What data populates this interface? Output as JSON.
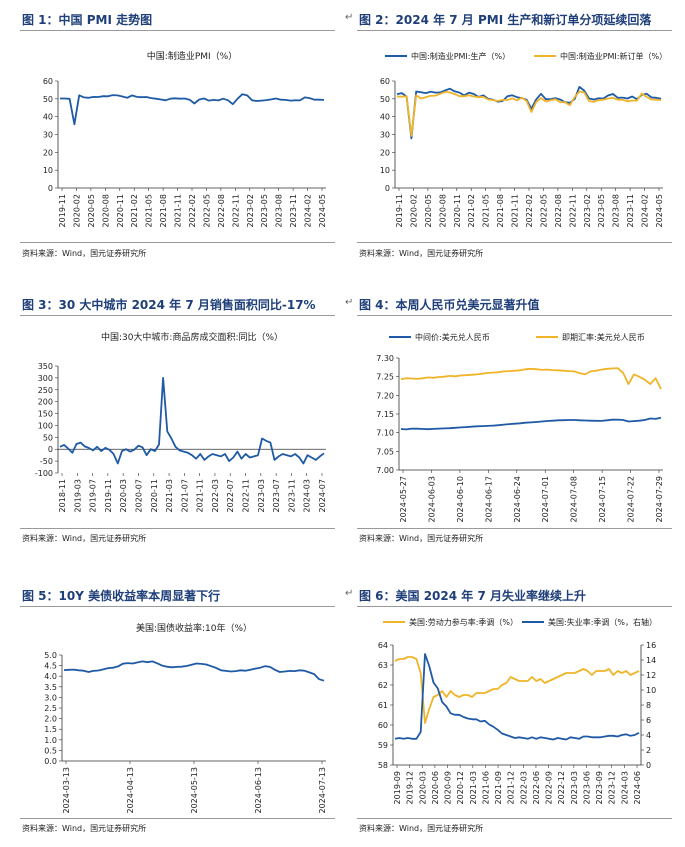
{
  "figures": [
    {
      "title": "图 1：中国 PMI 走势图",
      "source": "资料来源：Wind，国元证券研究所"
    },
    {
      "title": "图 2：2024 年 7 月 PMI 生产和新订单分项延续回落",
      "source": "资料来源：Wind，国元证券研究所"
    },
    {
      "title": "图 3：30 大中城市 2024 年 7 月销售面积同比-17%",
      "source": "资料来源：Wind，国元证券研究所"
    },
    {
      "title": "图 4：本周人民币兑美元显著升值",
      "source": "资料来源：Wind，国元证券研究所"
    },
    {
      "title": "图 5：10Y 美债收益率本周显著下行",
      "source": "资料来源：Wind，国元证券研究所"
    },
    {
      "title": "图 6：美国 2024 年 7 月失业率继续上升",
      "source": "资料来源：Wind，国元证券研究所"
    }
  ],
  "pilcrow": "↵",
  "colors": {
    "navy": "#1f5aa6",
    "gold": "#f0b429",
    "title": "#1f3f7a"
  },
  "chart_data": [
    {
      "type": "line",
      "title": "中国:制造业PMI（%）",
      "ylim": [
        0,
        60
      ],
      "yticks": [
        0,
        10,
        20,
        30,
        40,
        50,
        60
      ],
      "xticks": [
        "2019-11",
        "2020-02",
        "2020-05",
        "2020-08",
        "2020-11",
        "2021-02",
        "2021-05",
        "2021-08",
        "2021-11",
        "2022-02",
        "2022-05",
        "2022-08",
        "2022-11",
        "2023-02",
        "2023-05",
        "2023-08",
        "2023-11",
        "2024-02",
        "2024-05"
      ],
      "series": [
        {
          "name": "",
          "color": "#1f5aa6",
          "values": [
            50.2,
            50.2,
            50.0,
            35.7,
            52.0,
            50.8,
            50.6,
            51.1,
            51.0,
            51.5,
            51.4,
            52.1,
            51.9,
            51.3,
            50.6,
            51.9,
            51.1,
            50.9,
            51.0,
            50.4,
            50.1,
            49.6,
            49.2,
            50.1,
            50.3,
            50.1,
            50.2,
            49.5,
            47.4,
            49.6,
            50.2,
            49.0,
            49.4,
            49.1,
            50.1,
            49.2,
            47.0,
            50.1,
            52.6,
            51.9,
            49.2,
            48.8,
            49.0,
            49.3,
            49.7,
            50.2,
            49.5,
            49.4,
            49.0,
            49.2,
            49.1,
            50.8,
            50.4,
            49.5,
            49.5,
            49.4
          ]
        }
      ]
    },
    {
      "type": "line",
      "ylim": [
        0,
        60
      ],
      "yticks": [
        0,
        10,
        20,
        30,
        40,
        50,
        60
      ],
      "xticks": [
        "2019-11",
        "2020-02",
        "2020-05",
        "2020-08",
        "2020-11",
        "2021-02",
        "2021-05",
        "2021-08",
        "2021-11",
        "2022-02",
        "2022-05",
        "2022-08",
        "2022-11",
        "2023-02",
        "2023-05",
        "2023-08",
        "2023-11",
        "2024-02",
        "2024-05"
      ],
      "series": [
        {
          "name": "中国:制造业PMI:生产（%）",
          "color": "#1f5aa6",
          "values": [
            52.6,
            53.2,
            51.3,
            27.8,
            54.1,
            53.7,
            53.2,
            54.0,
            53.5,
            53.6,
            54.7,
            55.7,
            54.2,
            53.5,
            51.9,
            53.5,
            52.7,
            51.0,
            51.9,
            50.0,
            49.5,
            48.4,
            48.8,
            51.4,
            52.0,
            50.9,
            50.4,
            49.5,
            44.4,
            49.7,
            52.8,
            49.8,
            49.8,
            50.4,
            49.6,
            48.1,
            47.8,
            49.8,
            56.7,
            54.6,
            50.2,
            49.6,
            50.3,
            50.2,
            51.9,
            52.7,
            50.6,
            50.7,
            50.2,
            51.3,
            49.8,
            52.2,
            52.9,
            50.8,
            50.6,
            50.1
          ]
        },
        {
          "name": "中国:制造业PMI:新订单（%）",
          "color": "#f0b429",
          "values": [
            51.3,
            51.2,
            51.4,
            29.3,
            52.0,
            50.2,
            50.9,
            51.7,
            51.8,
            52.8,
            53.9,
            53.6,
            52.7,
            51.5,
            51.5,
            52.0,
            51.3,
            50.9,
            51.1,
            49.6,
            49.3,
            48.8,
            49.4,
            49.3,
            50.3,
            49.1,
            50.7,
            48.8,
            42.6,
            48.2,
            50.4,
            48.5,
            49.2,
            49.8,
            48.1,
            48.1,
            46.4,
            50.9,
            54.1,
            53.6,
            48.8,
            48.3,
            49.3,
            49.5,
            50.2,
            50.5,
            49.5,
            49.4,
            48.7,
            49.0,
            49.0,
            53.0,
            51.1,
            49.6,
            49.5,
            49.3
          ]
        }
      ]
    },
    {
      "type": "line",
      "title": "中国:30大中城市:商品房成交面积:同比（%）",
      "ylim": [
        -100,
        350
      ],
      "yticks": [
        -100,
        -50,
        0,
        50,
        100,
        150,
        200,
        250,
        300,
        350
      ],
      "xticks": [
        "2018-11",
        "2019-03",
        "2019-07",
        "2019-11",
        "2020-03",
        "2020-07",
        "2020-11",
        "2021-03",
        "2021-07",
        "2021-11",
        "2022-03",
        "2022-07",
        "2022-11",
        "2023-03",
        "2023-07",
        "2023-11",
        "2024-03",
        "2024-07"
      ],
      "series": [
        {
          "name": "",
          "color": "#1f5aa6",
          "values": [
            10,
            18,
            2,
            -15,
            22,
            28,
            12,
            5,
            -5,
            10,
            -8,
            6,
            -3,
            -20,
            -60,
            -8,
            0,
            -10,
            -2,
            15,
            8,
            -25,
            0,
            -8,
            20,
            300,
            75,
            45,
            10,
            -5,
            -10,
            -15,
            -25,
            -40,
            -20,
            -45,
            -30,
            -20,
            -25,
            -30,
            -20,
            -50,
            -35,
            -10,
            -40,
            -20,
            -35,
            -30,
            -25,
            45,
            35,
            28,
            -45,
            -30,
            -20,
            -25,
            -30,
            -20,
            -35,
            -60,
            -25,
            -35,
            -45,
            -30,
            -17
          ]
        }
      ]
    },
    {
      "type": "line",
      "ylim": [
        7.0,
        7.3
      ],
      "yticks": [
        "7.00",
        "7.05",
        "7.10",
        "7.15",
        "7.20",
        "7.25",
        "7.30"
      ],
      "xticks": [
        "2024-05-27",
        "2024-06-03",
        "2024-06-10",
        "2024-06-17",
        "2024-06-24",
        "2024-07-01",
        "2024-07-08",
        "2024-07-15",
        "2024-07-22",
        "2024-07-29"
      ],
      "series": [
        {
          "name": "中间价:美元兑人民币",
          "color": "#1f5aa6",
          "values": [
            7.1097,
            7.1088,
            7.1108,
            7.1106,
            7.1099,
            7.1094,
            7.11,
            7.1108,
            7.1115,
            7.112,
            7.113,
            7.114,
            7.1148,
            7.116,
            7.117,
            7.1175,
            7.118,
            7.119,
            7.12,
            7.1215,
            7.123,
            7.124,
            7.125,
            7.1268,
            7.1276,
            7.1285,
            7.1298,
            7.1312,
            7.132,
            7.133,
            7.1335,
            7.134,
            7.1338,
            7.133,
            7.1325,
            7.132,
            7.1318,
            7.1315,
            7.133,
            7.1346,
            7.135,
            7.134,
            7.13,
            7.131,
            7.132,
            7.134,
            7.138,
            7.137,
            7.14
          ]
        },
        {
          "name": "即期汇率:美元兑人民币",
          "color": "#f0b429",
          "values": [
            7.243,
            7.246,
            7.245,
            7.244,
            7.2455,
            7.248,
            7.247,
            7.249,
            7.25,
            7.252,
            7.251,
            7.253,
            7.254,
            7.255,
            7.256,
            7.258,
            7.26,
            7.261,
            7.262,
            7.264,
            7.265,
            7.266,
            7.267,
            7.27,
            7.271,
            7.27,
            7.268,
            7.269,
            7.2675,
            7.267,
            7.266,
            7.265,
            7.264,
            7.259,
            7.256,
            7.264,
            7.266,
            7.269,
            7.271,
            7.272,
            7.273,
            7.26,
            7.23,
            7.256,
            7.25,
            7.242,
            7.23,
            7.246,
            7.217
          ]
        }
      ]
    },
    {
      "type": "line",
      "title": "美国:国债收益率:10年（%）",
      "ylim": [
        0,
        5
      ],
      "yticks": [
        "0.0",
        "0.5",
        "1.0",
        "1.5",
        "2.0",
        "2.5",
        "3.0",
        "3.5",
        "4.0",
        "4.5",
        "5.0"
      ],
      "xticks": [
        "2024-03-13",
        "2024-04-13",
        "2024-05-13",
        "2024-06-13",
        "2024-07-13"
      ],
      "series": [
        {
          "name": "",
          "color": "#1f5aa6",
          "values": [
            4.29,
            4.3,
            4.31,
            4.28,
            4.26,
            4.2,
            4.25,
            4.27,
            4.32,
            4.38,
            4.4,
            4.46,
            4.59,
            4.62,
            4.6,
            4.65,
            4.7,
            4.66,
            4.7,
            4.61,
            4.5,
            4.45,
            4.42,
            4.44,
            4.45,
            4.48,
            4.54,
            4.6,
            4.58,
            4.55,
            4.47,
            4.39,
            4.28,
            4.25,
            4.22,
            4.24,
            4.28,
            4.26,
            4.3,
            4.36,
            4.4,
            4.47,
            4.44,
            4.3,
            4.2,
            4.22,
            4.25,
            4.24,
            4.28,
            4.26,
            4.18,
            4.1,
            3.86,
            3.79
          ]
        }
      ]
    },
    {
      "type": "line",
      "ylim": [
        58,
        64
      ],
      "yticks": [
        58,
        59,
        60,
        61,
        62,
        63,
        64
      ],
      "y2lim": [
        0,
        16
      ],
      "y2ticks": [
        0,
        2,
        4,
        6,
        8,
        10,
        12,
        14,
        16
      ],
      "xticks": [
        "2019-09",
        "2019-12",
        "2020-03",
        "2020-06",
        "2020-09",
        "2020-12",
        "2021-03",
        "2021-06",
        "2021-09",
        "2021-12",
        "2022-03",
        "2022-06",
        "2022-09",
        "2022-12",
        "2023-03",
        "2023-06",
        "2023-09",
        "2023-12",
        "2024-03",
        "2024-06"
      ],
      "series": [
        {
          "name": "美国:劳动力参与率:季调（%）",
          "color": "#f0b429",
          "axis": "left",
          "values": [
            63.2,
            63.3,
            63.3,
            63.4,
            63.4,
            63.3,
            62.6,
            60.1,
            60.8,
            61.4,
            61.5,
            61.7,
            61.4,
            61.7,
            61.5,
            61.4,
            61.5,
            61.5,
            61.4,
            61.6,
            61.6,
            61.6,
            61.7,
            61.8,
            61.8,
            62.0,
            62.1,
            62.4,
            62.3,
            62.2,
            62.2,
            62.2,
            62.4,
            62.2,
            62.3,
            62.1,
            62.2,
            62.3,
            62.4,
            62.5,
            62.6,
            62.6,
            62.6,
            62.7,
            62.8,
            62.7,
            62.5,
            62.7,
            62.7,
            62.7,
            62.8,
            62.5,
            62.7,
            62.6,
            62.7,
            62.5,
            62.6,
            62.7
          ]
        },
        {
          "name": "美国:失业率:季调（%，右轴）",
          "color": "#1f5aa6",
          "axis": "right",
          "values": [
            3.5,
            3.6,
            3.5,
            3.6,
            3.5,
            3.5,
            4.4,
            14.8,
            13.2,
            11.0,
            10.2,
            8.4,
            7.8,
            6.9,
            6.7,
            6.7,
            6.4,
            6.2,
            6.1,
            6.1,
            5.8,
            5.9,
            5.4,
            5.1,
            4.7,
            4.2,
            4.0,
            3.8,
            3.6,
            3.7,
            3.6,
            3.5,
            3.7,
            3.5,
            3.7,
            3.6,
            3.5,
            3.4,
            3.6,
            3.5,
            3.4,
            3.7,
            3.6,
            3.5,
            3.8,
            3.8,
            3.7,
            3.7,
            3.7,
            3.8,
            3.9,
            3.9,
            3.8,
            4.0,
            4.1,
            3.9,
            4.0,
            4.3
          ]
        }
      ]
    }
  ]
}
